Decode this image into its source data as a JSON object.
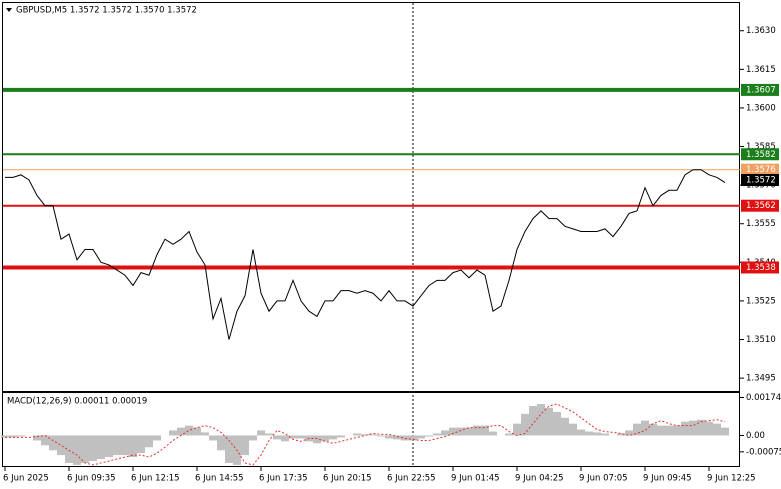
{
  "chart_data": [
    {
      "type": "line",
      "title": "GBPUSD,M5  1.3572 1.3572 1.3570 1.3572",
      "categories": [
        "6 Jun 2025",
        null,
        null,
        null,
        null,
        null,
        null,
        null,
        "6 Jun 09:35",
        null,
        null,
        null,
        null,
        null,
        null,
        null,
        "6 Jun 12:15",
        null,
        null,
        null,
        null,
        null,
        null,
        null,
        "6 Jun 14:55",
        null,
        null,
        null,
        null,
        null,
        null,
        null,
        "6 Jun 17:35",
        null,
        null,
        null,
        null,
        null,
        null,
        null,
        "6 Jun 20:15",
        null,
        null,
        null,
        null,
        null,
        null,
        null,
        "6 Jun 22:55",
        null,
        null,
        null,
        null,
        null,
        null,
        null,
        "9 Jun 01:45",
        null,
        null,
        null,
        null,
        null,
        null,
        null,
        "9 Jun 04:25",
        null,
        null,
        null,
        null,
        null,
        null,
        null,
        "9 Jun 07:05",
        null,
        null,
        null,
        null,
        null,
        null,
        null,
        "9 Jun 09:45",
        null,
        null,
        null,
        null,
        null,
        null,
        null,
        "9 Jun 12:25",
        null,
        null
      ],
      "values": [
        1.3573,
        1.3573,
        1.3574,
        1.3572,
        1.3566,
        1.3562,
        1.3562,
        1.3549,
        1.3551,
        1.3541,
        1.3545,
        1.3545,
        1.354,
        1.3539,
        1.3537,
        1.3535,
        1.3531,
        1.3536,
        1.3535,
        1.3543,
        1.3549,
        1.3547,
        1.3549,
        1.3552,
        1.3544,
        1.3539,
        1.3518,
        1.3526,
        1.351,
        1.3521,
        1.3527,
        1.3545,
        1.3528,
        1.3521,
        1.3525,
        1.3525,
        1.3533,
        1.3525,
        1.3521,
        1.3519,
        1.3525,
        1.3525,
        1.3529,
        1.3529,
        1.3528,
        1.3529,
        1.3528,
        1.3525,
        1.3529,
        1.3525,
        1.3525,
        1.3523,
        1.3527,
        1.3531,
        1.3533,
        1.3533,
        1.3536,
        1.3537,
        1.3534,
        1.3537,
        1.3535,
        1.3521,
        1.3523,
        1.3533,
        1.3545,
        1.3552,
        1.3557,
        1.356,
        1.3557,
        1.3557,
        1.3554,
        1.3553,
        1.3552,
        1.3552,
        1.3552,
        1.3553,
        1.355,
        1.3554,
        1.3559,
        1.356,
        1.3569,
        1.3562,
        1.3566,
        1.3568,
        1.3568,
        1.3574,
        1.3576,
        1.3576,
        1.3574,
        1.3573,
        1.3571
      ],
      "color": "#000000",
      "ylim": [
        1.349,
        1.364
      ],
      "yticks": [
        {
          "value": 1.363,
          "label": "1.3630"
        },
        1.3615,
        {
          "value": 1.36,
          "label": "1.3600"
        },
        1.3585,
        {
          "value": 1.357,
          "label": "1.3570"
        },
        1.3555,
        {
          "value": 1.354,
          "label": "1.3540"
        },
        1.3525,
        {
          "value": 1.351,
          "label": "1.3510"
        },
        1.3495
      ],
      "levels": [
        {
          "value": 1.3607,
          "color": "#1a7f1a",
          "width": 4
        },
        {
          "value": 1.3582,
          "color": "#1a7f1a",
          "width": 2
        },
        {
          "value": 1.3576,
          "color": "#f0a060",
          "width": 1
        },
        {
          "value": 1.3562,
          "color": "#e01010",
          "width": 2
        },
        {
          "value": 1.3538,
          "color": "#e01010",
          "width": 4
        }
      ],
      "last_value": 1.3572
    },
    {
      "type": "bar",
      "title": "MACD(12,26,9) 0.00011 0.00019",
      "values": [
        -9e-05,
        -9e-05,
        -5e-05,
        0,
        -0.00023,
        -0.00045,
        -0.00068,
        -0.0009,
        -0.00126,
        -0.00135,
        -0.00126,
        -0.00117,
        -0.00108,
        -0.00099,
        -0.0009,
        -0.0009,
        -0.00099,
        -0.00081,
        -0.00054,
        -0.00023,
        0,
        0.00023,
        0.00036,
        0.00045,
        0.00036,
        0.00014,
        -0.00023,
        -0.00068,
        -0.00126,
        -0.00135,
        -0.0009,
        -0.00023,
        0.00023,
        9e-05,
        -0.00018,
        -0.00027,
        -0.00014,
        -0.00014,
        -0.00027,
        -0.00036,
        -0.00027,
        -0.00018,
        -9e-05,
        0,
        9e-05,
        5e-05,
        5e-05,
        -5e-05,
        -0.00014,
        -0.00018,
        -0.00023,
        -0.00023,
        -0.00014,
        -5e-05,
        9e-05,
        0.00023,
        0.00036,
        0.00036,
        0.00036,
        0.00045,
        0.00045,
        0.00018,
        0,
        9e-05,
        0.00054,
        0.00099,
        0.00135,
        0.00144,
        0.00126,
        0.00108,
        0.00081,
        0.00054,
        0.00027,
        0.00018,
        0.00014,
        9e-05,
        0,
        9e-05,
        0.00023,
        0.00054,
        0.00068,
        0.00054,
        0.00045,
        0.00045,
        0.00045,
        0.00063,
        0.00068,
        0.00072,
        0.00063,
        0.00054,
        0.00036
      ],
      "color": "#c0c0c0",
      "signal": {
        "color": "#e03030",
        "values": [
          -9e-05,
          -9e-05,
          -9e-05,
          -9e-05,
          -5e-05,
          0,
          -0.00023,
          -0.00045,
          -0.00068,
          -0.0009,
          -0.00126,
          -0.00135,
          -0.00126,
          -0.00117,
          -0.00108,
          -0.00099,
          -0.0009,
          -0.0009,
          -0.00099,
          -0.00081,
          -0.00054,
          -0.00023,
          0,
          0.00023,
          0.00036,
          0.00045,
          0.00036,
          0.00014,
          -0.00023,
          -0.00068,
          -0.00126,
          -0.00135,
          -0.0009,
          -0.00023,
          0.00023,
          9e-05,
          -0.00018,
          -0.00027,
          -0.00014,
          -0.00014,
          -0.00027,
          -0.00036,
          -0.00027,
          -0.00018,
          -9e-05,
          0,
          9e-05,
          5e-05,
          5e-05,
          -5e-05,
          -0.00014,
          -0.00018,
          -0.00023,
          -0.00023,
          -0.00014,
          -5e-05,
          9e-05,
          0.00023,
          0.00036,
          0.00036,
          0.00036,
          0.00045,
          0.00045,
          0.00018,
          0,
          9e-05,
          0.00054,
          0.00099,
          0.00135,
          0.00144,
          0.00126,
          0.00108,
          0.00081,
          0.00054,
          0.00027,
          0.00018,
          0.00014,
          9e-05,
          0,
          9e-05,
          0.00023,
          0.00054,
          0.00068,
          0.00054,
          0.00045,
          0.00045,
          0.00045,
          0.00063,
          0.00068,
          0.00072,
          0.00063
        ]
      },
      "ylim": [
        -0.0014,
        0.0019
      ],
      "yticks": [
        0.00174,
        {
          "value": 0,
          "label": "0.00"
        },
        -0.00075
      ]
    }
  ]
}
